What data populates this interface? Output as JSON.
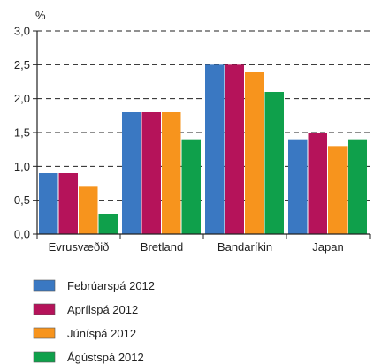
{
  "chart_data": {
    "type": "bar",
    "ylabel": "%",
    "categories": [
      "Evrusvæðið",
      "Bretland",
      "Bandaríkin",
      "Japan"
    ],
    "series": [
      {
        "name": "Febrúarspá 2012",
        "color": "#3a78c2",
        "values": [
          0.9,
          1.8,
          2.5,
          1.4
        ]
      },
      {
        "name": "Aprílspá 2012",
        "color": "#b5135a",
        "values": [
          0.9,
          1.8,
          2.5,
          1.5
        ]
      },
      {
        "name": "Júníspá 2012",
        "color": "#f7941d",
        "values": [
          0.7,
          1.8,
          2.4,
          1.3
        ]
      },
      {
        "name": "Ágústspá 2012",
        "color": "#0fa04b",
        "values": [
          0.3,
          1.4,
          2.1,
          1.4
        ]
      }
    ],
    "ylim": [
      0,
      3.0
    ],
    "yticks": [
      "0,0",
      "0,5",
      "1,0",
      "1,5",
      "2,0",
      "2,5",
      "3,0"
    ],
    "grid": "dashed-horizontal",
    "legend": "bottom-left"
  }
}
